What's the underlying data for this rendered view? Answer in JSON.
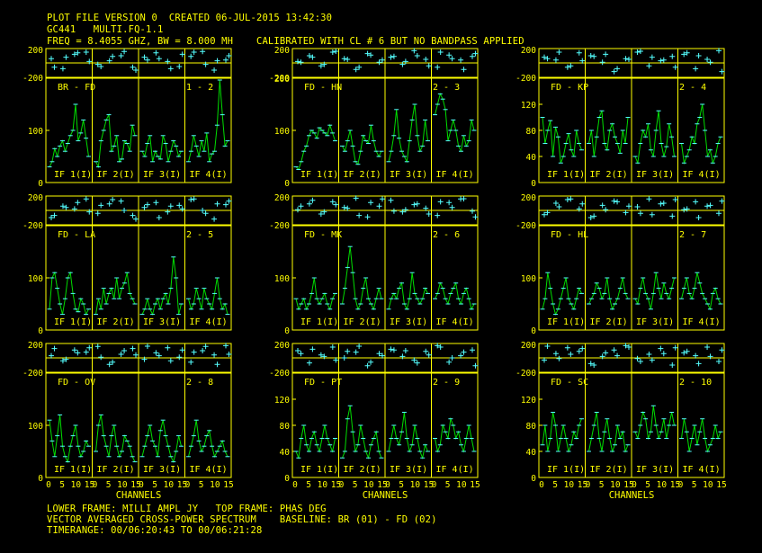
{
  "header": {
    "line1": "PLOT FILE VERSION 0  CREATED 06-JUL-2015 13:42:30",
    "line2": "GC441   MULTI.FQ-1.1",
    "line3": "FREQ = 8.4055 GHZ, BW = 8.000 MH    CALIBRATED WITH CL # 6 BUT NO BANDPASS APPLIED"
  },
  "footer": {
    "line1": "LOWER FRAME: MILLI AMPL JY   TOP FRAME: PHAS DEG",
    "line2": "VECTOR AVERAGED CROSS-POWER SPECTRUM    BASELINE: BR (01) - FD (02)",
    "line3": "TIMERANGE: 00/06:20:43 TO 00/06:21:28"
  },
  "colors": {
    "background": "#000000",
    "frame": "#ffff00",
    "text": "#ffff00",
    "amplitude_line": "#00dd00",
    "points": "#55ffff"
  },
  "chart_data": {
    "type": "line",
    "description_axes": {
      "x_label": "CHANNELS",
      "x_tick_labels": [
        "0",
        "5",
        "10",
        "15",
        "0",
        "5",
        "10",
        "15",
        "0",
        "5",
        "10",
        "15",
        "0",
        "5",
        "10",
        "15"
      ],
      "x_tick_label_text": "0 510150 510150 510150 51015",
      "phase_ylim": [
        -200,
        200
      ],
      "phase_tick_labels": [
        "200",
        "-200"
      ],
      "if_labels": [
        "IF 1(I)",
        "IF 2(I)",
        "IF 3(I)",
        "IF 4(I)"
      ]
    },
    "panels": [
      {
        "baseline": "BR - FD",
        "pair": "1 - 2",
        "amp_ylim": [
          0,
          200
        ],
        "amp_ticks": [
          0,
          100
        ],
        "phase": [
          60,
          -80,
          120,
          150,
          -20,
          30,
          100,
          -60,
          80,
          140,
          20,
          -50,
          90,
          160,
          -100,
          40
        ],
        "amp": [
          [
            30,
            40,
            65,
            50,
            70,
            80,
            60,
            75,
            90,
            100,
            150,
            80,
            95,
            120,
            85,
            50
          ],
          [
            40,
            30,
            80,
            100,
            120,
            130,
            60,
            70,
            90,
            40,
            45,
            80,
            75,
            60,
            110,
            90
          ],
          [
            60,
            50,
            75,
            90,
            40,
            60,
            50,
            45,
            90,
            75,
            40,
            60,
            80,
            70,
            50,
            60
          ],
          [
            40,
            60,
            90,
            70,
            50,
            80,
            60,
            95,
            40,
            55,
            60,
            110,
            200,
            130,
            70,
            80
          ]
        ]
      },
      {
        "baseline": "FD - HN",
        "pair": "2 - 3",
        "amp_ylim": [
          0,
          200
        ],
        "amp_ticks": [
          0,
          100,
          200
        ],
        "phase": [
          20,
          100,
          -40,
          150,
          60,
          -90,
          130,
          10,
          80,
          -20,
          170,
          50,
          -60,
          110,
          40,
          90
        ],
        "amp": [
          [
            30,
            25,
            40,
            60,
            70,
            90,
            100,
            95,
            85,
            105,
            100,
            95,
            90,
            110,
            95,
            80
          ],
          [
            70,
            60,
            80,
            100,
            70,
            40,
            35,
            60,
            90,
            80,
            75,
            110,
            80,
            60,
            50,
            60
          ],
          [
            40,
            60,
            90,
            140,
            85,
            60,
            50,
            40,
            80,
            120,
            150,
            90,
            60,
            70,
            120,
            80
          ],
          [
            130,
            150,
            170,
            160,
            140,
            80,
            100,
            120,
            100,
            70,
            60,
            90,
            70,
            80,
            120,
            100
          ]
        ]
      },
      {
        "baseline": "FD - KP",
        "pair": "2 - 4",
        "amp_ylim": [
          0,
          160
        ],
        "amp_ticks": [
          0,
          40,
          80,
          120
        ],
        "phase": [
          80,
          40,
          -60,
          140,
          100,
          10,
          -120,
          60,
          150,
          -40,
          30,
          90,
          120,
          -80,
          50,
          170
        ],
        "amp": [
          [
            100,
            60,
            80,
            95,
            40,
            85,
            70,
            30,
            40,
            60,
            75,
            50,
            40,
            80,
            60,
            50
          ],
          [
            60,
            80,
            40,
            70,
            100,
            110,
            60,
            50,
            80,
            90,
            70,
            60,
            45,
            80,
            60,
            100
          ],
          [
            40,
            30,
            60,
            80,
            70,
            90,
            50,
            40,
            80,
            110,
            60,
            40,
            55,
            90,
            70,
            40
          ],
          [
            60,
            30,
            40,
            50,
            70,
            60,
            90,
            100,
            120,
            80,
            40,
            50,
            30,
            40,
            60,
            70
          ]
        ]
      },
      {
        "baseline": "FD - LA",
        "pair": "2 - 5",
        "amp_ylim": [
          0,
          200
        ],
        "amp_ticks": [
          0,
          100
        ],
        "phase": [
          -100,
          60,
          20,
          160,
          -40,
          90,
          130,
          -70,
          40,
          110,
          -20,
          70,
          150,
          0,
          -120,
          80
        ],
        "amp": [
          [
            40,
            100,
            110,
            80,
            50,
            30,
            60,
            100,
            110,
            70,
            40,
            35,
            60,
            50,
            30,
            40
          ],
          [
            30,
            60,
            40,
            80,
            50,
            70,
            80,
            60,
            100,
            60,
            80,
            90,
            110,
            70,
            60,
            50
          ],
          [
            30,
            40,
            60,
            40,
            30,
            50,
            60,
            40,
            60,
            70,
            50,
            80,
            140,
            100,
            30,
            50
          ],
          [
            60,
            40,
            50,
            80,
            60,
            40,
            80,
            60,
            50,
            40,
            70,
            100,
            60,
            40,
            50,
            30
          ]
        ]
      },
      {
        "baseline": "FD - MK",
        "pair": "2 - 6",
        "amp_ylim": [
          0,
          200
        ],
        "amp_ticks": [
          0,
          100
        ],
        "phase": [
          10,
          90,
          -50,
          120,
          40,
          170,
          -90,
          60,
          140,
          -20,
          80,
          30,
          -70,
          110,
          160,
          -10
        ],
        "amp": [
          [
            60,
            40,
            50,
            60,
            40,
            50,
            70,
            100,
            60,
            50,
            60,
            70,
            50,
            40,
            60,
            70
          ],
          [
            50,
            80,
            120,
            160,
            110,
            60,
            40,
            50,
            80,
            100,
            60,
            50,
            40,
            60,
            80,
            60
          ],
          [
            40,
            60,
            70,
            60,
            80,
            90,
            50,
            40,
            60,
            110,
            70,
            60,
            50,
            60,
            80,
            70
          ],
          [
            60,
            70,
            90,
            80,
            60,
            50,
            70,
            80,
            90,
            60,
            50,
            70,
            80,
            60,
            40,
            50
          ]
        ]
      },
      {
        "baseline": "FD - HL",
        "pair": "2 - 7",
        "amp_ylim": [
          0,
          200
        ],
        "amp_ticks": [
          0,
          100
        ],
        "phase": [
          -60,
          100,
          150,
          20,
          -100,
          70,
          130,
          -30,
          50,
          160,
          90,
          -80,
          10,
          120,
          60,
          -40
        ],
        "amp": [
          [
            40,
            60,
            110,
            80,
            50,
            30,
            40,
            60,
            80,
            100,
            60,
            50,
            40,
            60,
            80,
            70
          ],
          [
            50,
            60,
            70,
            90,
            80,
            60,
            70,
            100,
            60,
            40,
            50,
            60,
            80,
            100,
            70,
            60
          ],
          [
            60,
            50,
            80,
            100,
            70,
            60,
            40,
            70,
            110,
            80,
            60,
            90,
            70,
            60,
            80,
            100
          ],
          [
            60,
            80,
            100,
            70,
            60,
            80,
            110,
            90,
            70,
            60,
            50,
            40,
            70,
            80,
            60,
            50
          ]
        ]
      },
      {
        "baseline": "FD - OV",
        "pair": "2 - 8",
        "amp_ylim": [
          0,
          200
        ],
        "amp_ticks": [
          0,
          100
        ],
        "phase": [
          30,
          -40,
          110,
          80,
          160,
          -90,
          50,
          130,
          -20,
          70,
          140,
          10,
          -60,
          100,
          40,
          170
        ],
        "amp": [
          [
            110,
            70,
            40,
            80,
            120,
            60,
            40,
            30,
            60,
            80,
            100,
            60,
            40,
            50,
            70,
            60
          ],
          [
            50,
            100,
            120,
            80,
            60,
            40,
            80,
            100,
            60,
            40,
            50,
            80,
            70,
            60,
            40,
            30
          ],
          [
            40,
            60,
            80,
            100,
            70,
            60,
            40,
            90,
            110,
            80,
            60,
            40,
            30,
            50,
            80,
            60
          ],
          [
            40,
            60,
            80,
            110,
            70,
            50,
            60,
            80,
            90,
            60,
            40,
            50,
            60,
            70,
            50,
            40
          ]
        ]
      },
      {
        "baseline": "FD - PT",
        "pair": "2 - 9",
        "amp_ylim": [
          0,
          160
        ],
        "amp_ticks": [
          0,
          40,
          80,
          120
        ],
        "phase": [
          100,
          -70,
          40,
          150,
          0,
          80,
          -110,
          60,
          120,
          20,
          -30,
          90,
          170,
          -60,
          30,
          110
        ],
        "amp": [
          [
            40,
            30,
            60,
            80,
            50,
            40,
            60,
            70,
            50,
            40,
            60,
            80,
            60,
            50,
            40,
            60
          ],
          [
            30,
            40,
            90,
            110,
            70,
            40,
            50,
            80,
            60,
            40,
            30,
            50,
            60,
            70,
            40,
            30
          ],
          [
            40,
            60,
            80,
            60,
            50,
            70,
            100,
            60,
            40,
            50,
            80,
            60,
            40,
            30,
            50,
            40
          ],
          [
            60,
            40,
            50,
            80,
            70,
            60,
            90,
            80,
            60,
            70,
            50,
            40,
            60,
            80,
            60,
            40
          ]
        ]
      },
      {
        "baseline": "FD - SC",
        "pair": "2 - 10",
        "amp_ylim": [
          0,
          160
        ],
        "amp_ticks": [
          0,
          40,
          80,
          120
        ],
        "phase": [
          -30,
          60,
          140,
          90,
          -80,
          20,
          110,
          170,
          -10,
          50,
          130,
          -100,
          70,
          30,
          150,
          -50
        ],
        "amp": [
          [
            50,
            80,
            40,
            60,
            100,
            80,
            40,
            60,
            80,
            60,
            40,
            50,
            70,
            60,
            80,
            90
          ],
          [
            40,
            60,
            80,
            100,
            60,
            40,
            70,
            90,
            60,
            40,
            50,
            80,
            60,
            70,
            40,
            50
          ],
          [
            70,
            60,
            80,
            100,
            90,
            60,
            70,
            110,
            80,
            60,
            70,
            90,
            60,
            80,
            100,
            80
          ],
          [
            60,
            90,
            70,
            40,
            60,
            80,
            50,
            70,
            90,
            60,
            40,
            50,
            60,
            80,
            60,
            70
          ]
        ]
      }
    ]
  }
}
